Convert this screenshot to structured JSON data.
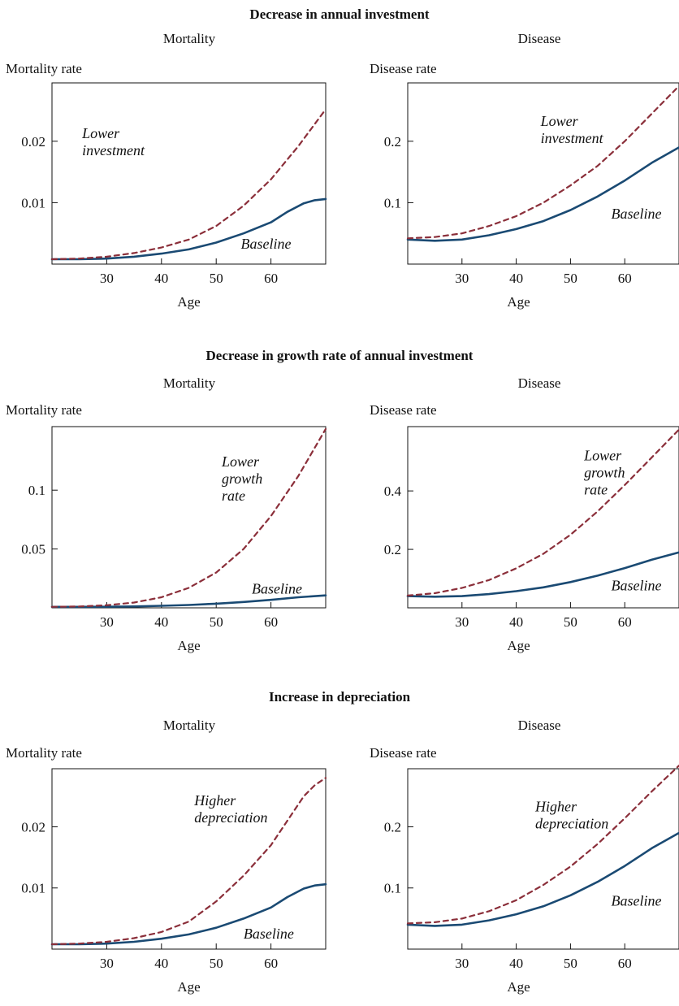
{
  "sections": [
    {
      "title": "Decrease in annual investment"
    },
    {
      "title": "Decrease in growth rate of annual investment"
    },
    {
      "title": "Increase in depreciation"
    }
  ],
  "chart_data": [
    {
      "type": "line",
      "section": 0,
      "panel_title": "Mortality",
      "ylabel": "Mortality rate",
      "xlabel": "Age",
      "xlim": [
        20,
        70
      ],
      "ylim": [
        0,
        0.0295
      ],
      "xticks": [
        "30",
        "40",
        "50",
        "60"
      ],
      "yticks": [
        "0.01",
        "0.02"
      ],
      "series": [
        {
          "name": "Baseline",
          "style": "solid",
          "color": "#1a4a73",
          "x": [
            20,
            25,
            30,
            35,
            40,
            45,
            50,
            55,
            60,
            63,
            66,
            68,
            70
          ],
          "y": [
            0.0008,
            0.0008,
            0.0009,
            0.0012,
            0.0017,
            0.0024,
            0.0035,
            0.005,
            0.0068,
            0.0085,
            0.0099,
            0.0104,
            0.0106
          ]
        },
        {
          "name": "Lower investment",
          "style": "dashed",
          "color": "#8b2f3a",
          "x": [
            20,
            25,
            30,
            35,
            40,
            45,
            50,
            55,
            60,
            65,
            70
          ],
          "y": [
            0.0008,
            0.0009,
            0.0012,
            0.0018,
            0.0027,
            0.004,
            0.0062,
            0.0095,
            0.0138,
            0.0192,
            0.0252
          ]
        }
      ],
      "annotations": [
        {
          "lines": [
            "Lower",
            "investment"
          ],
          "x": 25.5,
          "y": 0.0205
        },
        {
          "lines": [
            "Baseline"
          ],
          "x": 54.5,
          "y": 0.0025
        }
      ]
    },
    {
      "type": "line",
      "section": 0,
      "panel_title": "Disease",
      "ylabel": "Disease rate",
      "xlabel": "Age",
      "xlim": [
        20,
        70
      ],
      "ylim": [
        0,
        0.295
      ],
      "xticks": [
        "30",
        "40",
        "50",
        "60"
      ],
      "yticks": [
        "0.1",
        "0.2"
      ],
      "series": [
        {
          "name": "Baseline",
          "style": "solid",
          "color": "#1a4a73",
          "x": [
            20,
            25,
            30,
            35,
            40,
            45,
            50,
            55,
            60,
            65,
            70
          ],
          "y": [
            0.04,
            0.038,
            0.04,
            0.047,
            0.057,
            0.07,
            0.088,
            0.11,
            0.136,
            0.165,
            0.19
          ]
        },
        {
          "name": "Lower investment",
          "style": "dashed",
          "color": "#8b2f3a",
          "x": [
            20,
            25,
            30,
            35,
            40,
            45,
            50,
            55,
            60,
            65,
            70
          ],
          "y": [
            0.042,
            0.044,
            0.05,
            0.062,
            0.078,
            0.1,
            0.128,
            0.16,
            0.2,
            0.245,
            0.29
          ]
        }
      ],
      "annotations": [
        {
          "lines": [
            "Lower",
            "investment"
          ],
          "x": 44.5,
          "y": 0.225
        },
        {
          "lines": [
            "Baseline"
          ],
          "x": 57.5,
          "y": 0.074
        }
      ]
    },
    {
      "type": "line",
      "section": 1,
      "panel_title": "Mortality",
      "ylabel": "Mortality rate",
      "xlabel": "Age",
      "xlim": [
        20,
        70
      ],
      "ylim": [
        0,
        0.154
      ],
      "xticks": [
        "30",
        "40",
        "50",
        "60"
      ],
      "yticks": [
        "0.05",
        "0.1"
      ],
      "series": [
        {
          "name": "Baseline",
          "style": "solid",
          "color": "#1a4a73",
          "x": [
            20,
            25,
            30,
            35,
            40,
            45,
            50,
            55,
            60,
            65,
            70
          ],
          "y": [
            0.0008,
            0.0008,
            0.0009,
            0.0012,
            0.0017,
            0.0024,
            0.0035,
            0.005,
            0.0068,
            0.009,
            0.0106
          ]
        },
        {
          "name": "Lower growth rate",
          "style": "dashed",
          "color": "#8b2f3a",
          "x": [
            20,
            25,
            30,
            35,
            40,
            45,
            50,
            55,
            60,
            65,
            70
          ],
          "y": [
            0.0008,
            0.0012,
            0.0022,
            0.0045,
            0.009,
            0.017,
            0.03,
            0.05,
            0.078,
            0.112,
            0.152
          ]
        }
      ],
      "annotations": [
        {
          "lines": [
            "Lower",
            "growth",
            "rate"
          ],
          "x": 51,
          "y": 0.12
        },
        {
          "lines": [
            "Baseline"
          ],
          "x": 56.5,
          "y": 0.012
        }
      ]
    },
    {
      "type": "line",
      "section": 1,
      "panel_title": "Disease",
      "ylabel": "Disease rate",
      "xlabel": "Age",
      "xlim": [
        20,
        70
      ],
      "ylim": [
        0,
        0.62
      ],
      "xticks": [
        "30",
        "40",
        "50",
        "60"
      ],
      "yticks": [
        "0.2",
        "0.4"
      ],
      "series": [
        {
          "name": "Baseline",
          "style": "solid",
          "color": "#1a4a73",
          "x": [
            20,
            25,
            30,
            35,
            40,
            45,
            50,
            55,
            60,
            65,
            70
          ],
          "y": [
            0.04,
            0.038,
            0.04,
            0.047,
            0.057,
            0.07,
            0.088,
            0.11,
            0.136,
            0.165,
            0.19
          ]
        },
        {
          "name": "Lower growth rate",
          "style": "dashed",
          "color": "#8b2f3a",
          "x": [
            20,
            25,
            30,
            35,
            40,
            45,
            50,
            55,
            60,
            65,
            70
          ],
          "y": [
            0.042,
            0.05,
            0.068,
            0.095,
            0.135,
            0.185,
            0.25,
            0.33,
            0.42,
            0.515,
            0.61
          ]
        }
      ],
      "annotations": [
        {
          "lines": [
            "Lower",
            "growth",
            "rate"
          ],
          "x": 52.5,
          "y": 0.505
        },
        {
          "lines": [
            "Baseline"
          ],
          "x": 57.5,
          "y": 0.06
        }
      ]
    },
    {
      "type": "line",
      "section": 2,
      "panel_title": "Mortality",
      "ylabel": "Mortality rate",
      "xlabel": "Age",
      "xlim": [
        20,
        70
      ],
      "ylim": [
        0,
        0.0295
      ],
      "xticks": [
        "30",
        "40",
        "50",
        "60"
      ],
      "yticks": [
        "0.01",
        "0.02"
      ],
      "series": [
        {
          "name": "Baseline",
          "style": "solid",
          "color": "#1a4a73",
          "x": [
            20,
            25,
            30,
            35,
            40,
            45,
            50,
            55,
            60,
            63,
            66,
            68,
            70
          ],
          "y": [
            0.0008,
            0.0008,
            0.0009,
            0.0012,
            0.0017,
            0.0024,
            0.0035,
            0.005,
            0.0068,
            0.0085,
            0.0099,
            0.0104,
            0.0106
          ]
        },
        {
          "name": "Higher depreciation",
          "style": "dashed",
          "color": "#8b2f3a",
          "x": [
            20,
            25,
            30,
            35,
            40,
            45,
            50,
            55,
            60,
            63,
            66,
            68,
            70
          ],
          "y": [
            0.0008,
            0.0009,
            0.0012,
            0.0018,
            0.0028,
            0.0045,
            0.0078,
            0.012,
            0.017,
            0.021,
            0.025,
            0.0268,
            0.028
          ]
        }
      ],
      "annotations": [
        {
          "lines": [
            "Higher",
            "depreciation"
          ],
          "x": 46,
          "y": 0.0235
        },
        {
          "lines": [
            "Baseline"
          ],
          "x": 55,
          "y": 0.0017
        }
      ]
    },
    {
      "type": "line",
      "section": 2,
      "panel_title": "Disease",
      "ylabel": "Disease rate",
      "xlabel": "Age",
      "xlim": [
        20,
        70
      ],
      "ylim": [
        0,
        0.295
      ],
      "xticks": [
        "30",
        "40",
        "50",
        "60"
      ],
      "yticks": [
        "0.1",
        "0.2"
      ],
      "series": [
        {
          "name": "Baseline",
          "style": "solid",
          "color": "#1a4a73",
          "x": [
            20,
            25,
            30,
            35,
            40,
            45,
            50,
            55,
            60,
            65,
            70
          ],
          "y": [
            0.04,
            0.038,
            0.04,
            0.047,
            0.057,
            0.07,
            0.088,
            0.11,
            0.136,
            0.165,
            0.19
          ]
        },
        {
          "name": "Higher depreciation",
          "style": "dashed",
          "color": "#8b2f3a",
          "x": [
            20,
            25,
            30,
            35,
            40,
            45,
            50,
            55,
            60,
            65,
            70
          ],
          "y": [
            0.042,
            0.044,
            0.05,
            0.062,
            0.08,
            0.105,
            0.135,
            0.172,
            0.214,
            0.258,
            0.3
          ]
        }
      ],
      "annotations": [
        {
          "lines": [
            "Higher",
            "depreciation"
          ],
          "x": 43.5,
          "y": 0.225
        },
        {
          "lines": [
            "Baseline"
          ],
          "x": 57.5,
          "y": 0.071
        }
      ]
    }
  ]
}
